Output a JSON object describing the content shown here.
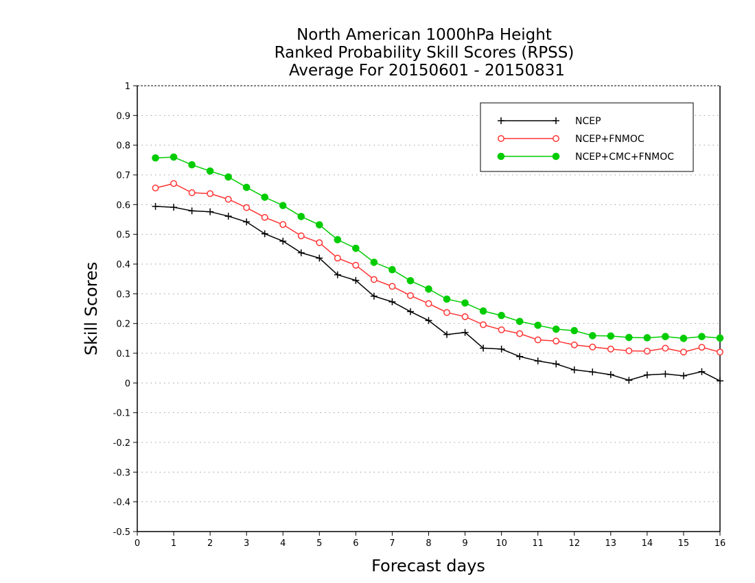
{
  "chart_data": {
    "type": "line",
    "title": [
      "North American 1000hPa Height",
      "Ranked Probability Skill Scores (RPSS)",
      "Average For 20150601 - 20150831"
    ],
    "xlabel": "Forecast days",
    "ylabel": "Skill Scores",
    "xlim": [
      0,
      16
    ],
    "ylim": [
      -0.5,
      1
    ],
    "x_ticks": [
      "0",
      "1",
      "2",
      "3",
      "4",
      "5",
      "6",
      "7",
      "8",
      "9",
      "10",
      "11",
      "12",
      "13",
      "14",
      "15",
      "16"
    ],
    "y_ticks": [
      "1",
      "0.9",
      "0.8",
      "0.7",
      "0.6",
      "0.5",
      "0.4",
      "0.3",
      "0.2",
      "0.1",
      "0",
      "-0.1",
      "-0.2",
      "-0.3",
      "-0.4",
      "-0.5"
    ],
    "grid": "horizontal dotted",
    "legend_position": "top-right",
    "x": [
      0.5,
      1,
      1.5,
      2,
      2.5,
      3,
      3.5,
      4,
      4.5,
      5,
      5.5,
      6,
      6.5,
      7,
      7.5,
      8,
      8.5,
      9,
      9.5,
      10,
      10.5,
      11,
      11.5,
      12,
      12.5,
      13,
      13.5,
      14,
      14.5,
      15,
      15.5,
      16
    ],
    "series": [
      {
        "name": "NCEP",
        "color": "#000000",
        "marker": "plus",
        "values": [
          0.594,
          0.591,
          0.579,
          0.576,
          0.561,
          0.542,
          0.502,
          0.477,
          0.438,
          0.42,
          0.364,
          0.345,
          0.292,
          0.273,
          0.24,
          0.21,
          0.163,
          0.17,
          0.117,
          0.114,
          0.089,
          0.074,
          0.064,
          0.044,
          0.037,
          0.028,
          0.009,
          0.027,
          0.03,
          0.024,
          0.038,
          0.007
        ]
      },
      {
        "name": "NCEP+FNMOC",
        "color": "#ff3333",
        "marker": "open-circle",
        "values": [
          0.656,
          0.671,
          0.64,
          0.637,
          0.618,
          0.59,
          0.557,
          0.533,
          0.495,
          0.472,
          0.42,
          0.396,
          0.348,
          0.325,
          0.294,
          0.267,
          0.237,
          0.223,
          0.196,
          0.179,
          0.166,
          0.145,
          0.141,
          0.128,
          0.121,
          0.114,
          0.108,
          0.107,
          0.117,
          0.104,
          0.12,
          0.104
        ]
      },
      {
        "name": "NCEP+CMC+FNMOC",
        "color": "#00cc00",
        "marker": "filled-circle",
        "values": [
          0.757,
          0.76,
          0.734,
          0.713,
          0.693,
          0.658,
          0.625,
          0.597,
          0.56,
          0.532,
          0.482,
          0.453,
          0.406,
          0.381,
          0.344,
          0.316,
          0.282,
          0.269,
          0.242,
          0.227,
          0.207,
          0.194,
          0.181,
          0.176,
          0.159,
          0.158,
          0.153,
          0.152,
          0.156,
          0.15,
          0.156,
          0.151
        ]
      }
    ]
  }
}
